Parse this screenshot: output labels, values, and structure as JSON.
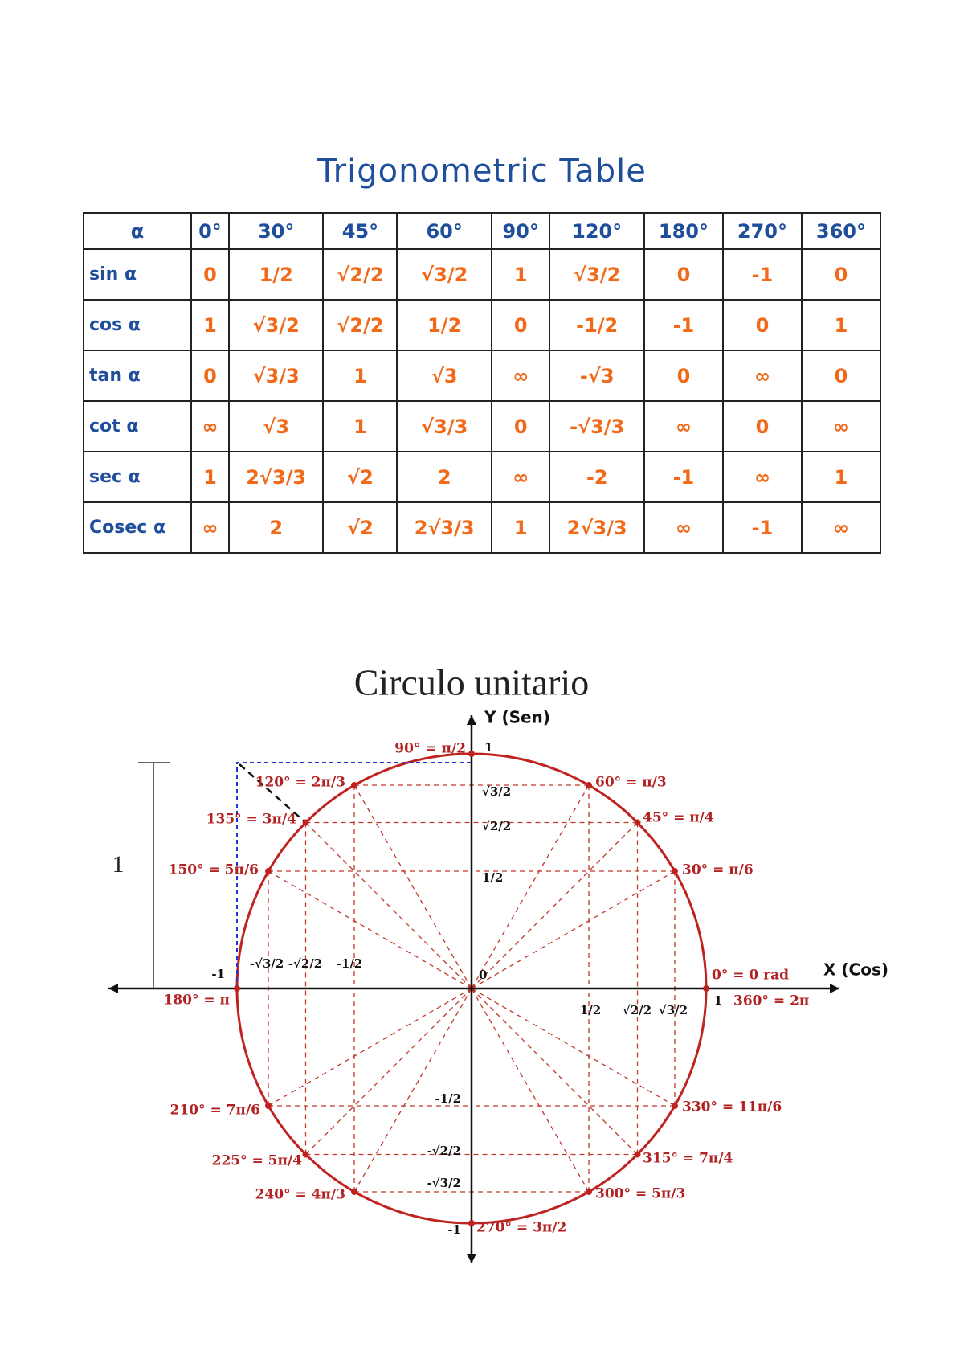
{
  "header": {
    "title": "Trigonometric Table"
  },
  "table": {
    "columns": [
      "α",
      "0°",
      "30°",
      "45°",
      "60°",
      "90°",
      "120°",
      "180°",
      "270°",
      "360°"
    ],
    "rows": [
      [
        "sin α",
        "0",
        "1/2",
        "√2/2",
        "√3/2",
        "1",
        "√3/2",
        "0",
        "-1",
        "0"
      ],
      [
        "cos α",
        "1",
        "√3/2",
        "√2/2",
        "1/2",
        "0",
        "-1/2",
        "-1",
        "0",
        "1"
      ],
      [
        "tan α",
        "0",
        "√3/3",
        "1",
        "√3",
        "∞",
        "-√3",
        "0",
        "∞",
        "0"
      ],
      [
        "cot α",
        "∞",
        "√3",
        "1",
        "√3/3",
        "0",
        "-√3/3",
        "∞",
        "0",
        "∞"
      ],
      [
        "sec α",
        "1",
        "2√3/3",
        "√2",
        "2",
        "∞",
        "-2",
        "-1",
        "∞",
        "1"
      ],
      [
        "Cosec α",
        "∞",
        "2",
        "√2",
        "2√3/3",
        "1",
        "2√3/3",
        "∞",
        "-1",
        "∞"
      ]
    ]
  },
  "diagram": {
    "title": "Circulo unitario",
    "x_axis_label": "X (Cos)",
    "y_axis_label": "Y (Sen)",
    "side_label": "1",
    "angle_labels": [
      "0° = 0 rad",
      "30° = π/6",
      "45° = π/4",
      "60° = π/3",
      "90° = π/2",
      "120° = 2π/3",
      "135° = 3π/4",
      "150° = 5π/6",
      "180° = π",
      "210° = 7π/6",
      "225° = 5π/4",
      "240° = 4π/3",
      "270° = 3π/2",
      "300° = 5π/3",
      "315° = 7π/4",
      "330° = 11π/6",
      "360° = 2π"
    ],
    "tick_labels": [
      "1",
      "√3/2",
      "√2/2",
      "1/2",
      "0",
      "-1/2",
      "-√2/2",
      "-√3/2",
      "-1",
      "1/2",
      "√2/2",
      "√3/2",
      "1",
      "-√3/2",
      "-√2/2",
      "-1/2",
      "-1"
    ]
  }
}
